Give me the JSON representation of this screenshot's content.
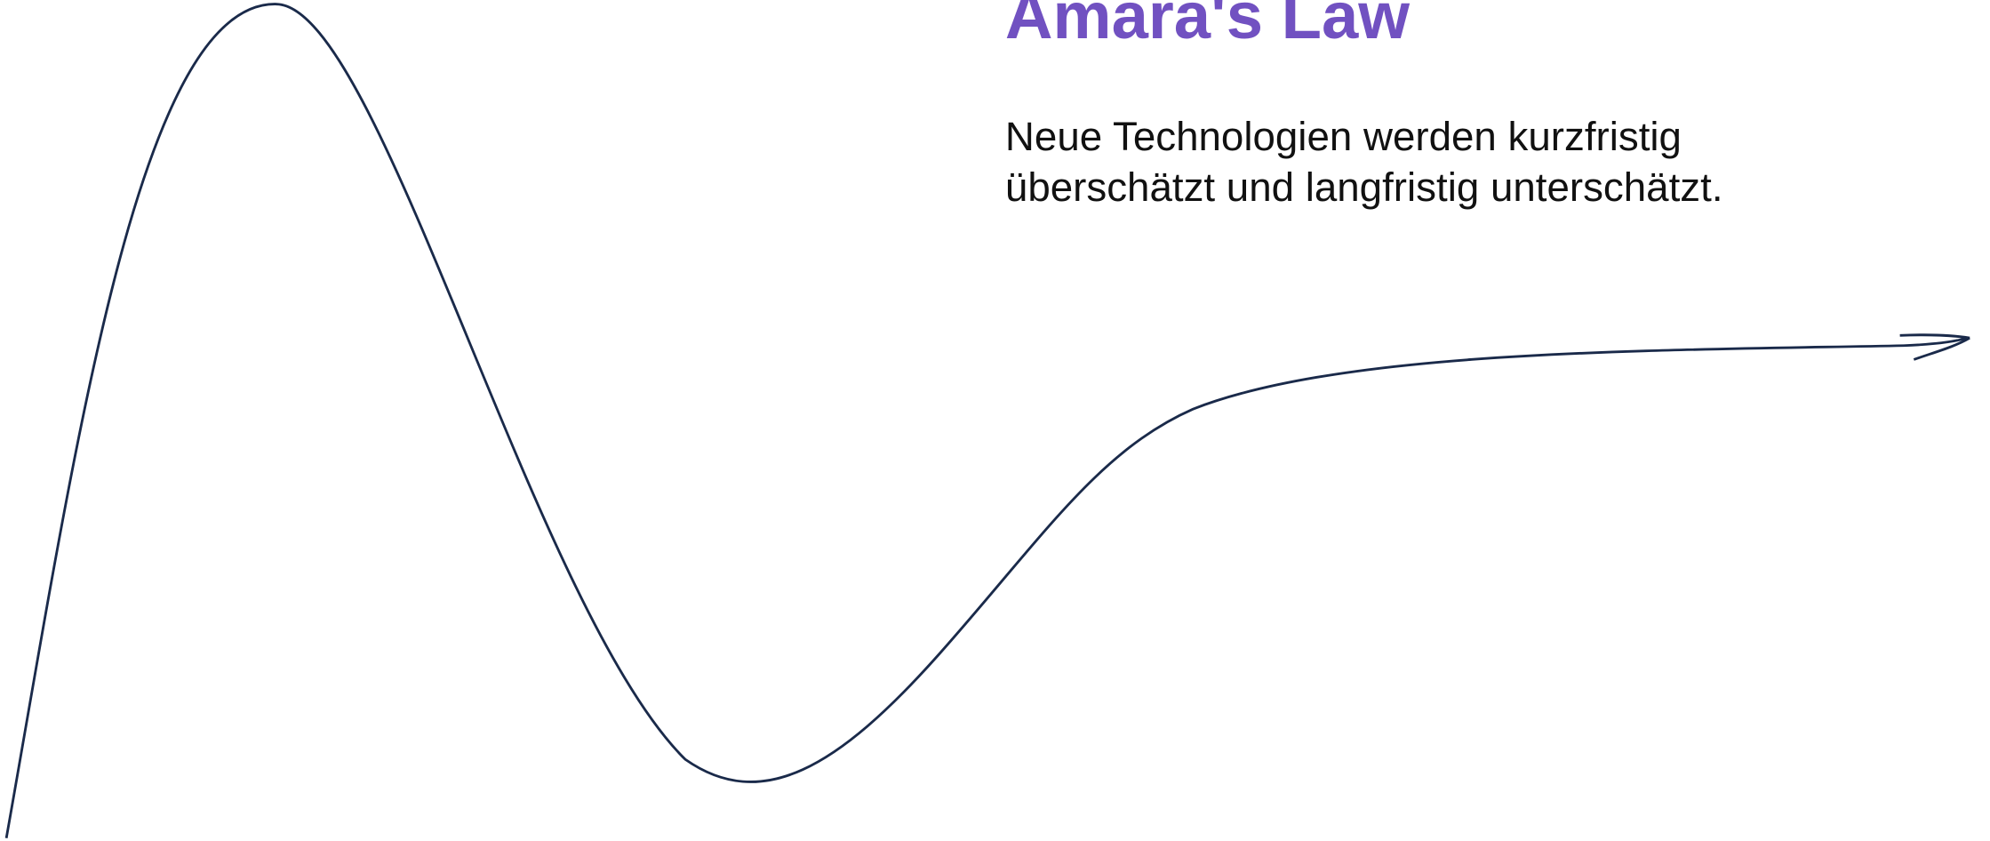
{
  "title": "Amara's Law",
  "text": {
    "lines": [
      "Neue Technologien werden kurzfristig",
      "überschätzt und langfristig unterschätzt."
    ]
  }
}
